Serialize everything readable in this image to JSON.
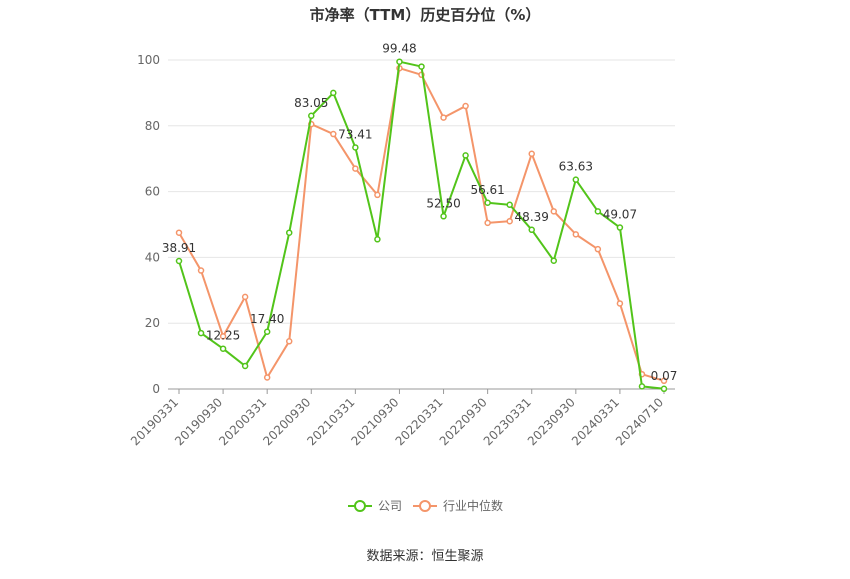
{
  "chart_data": {
    "type": "line",
    "title": "市净率（TTM）历史百分位（%）",
    "source": "数据来源：恒生聚源",
    "ylim": [
      0,
      100
    ],
    "yticks": [
      0,
      20,
      40,
      60,
      80,
      100
    ],
    "x": [
      "20190331",
      "20190630",
      "20190930",
      "20191231",
      "20200331",
      "20200630",
      "20200930",
      "20201231",
      "20210331",
      "20210630",
      "20210930",
      "20211231",
      "20220331",
      "20220630",
      "20220930",
      "20221231",
      "20230331",
      "20230630",
      "20230930",
      "20231231",
      "20240331",
      "20240630",
      "20240710"
    ],
    "xtick_labels": [
      "20190331",
      "20190930",
      "20200331",
      "20200930",
      "20210331",
      "20210930",
      "20220331",
      "20220930",
      "20230331",
      "20230930",
      "20240331",
      "20240710"
    ],
    "series": [
      {
        "name": "公司",
        "color": "#52c41a",
        "values": [
          38.91,
          17.0,
          12.25,
          7.0,
          17.4,
          47.5,
          83.05,
          90.0,
          73.41,
          45.5,
          99.48,
          98.0,
          52.5,
          71.0,
          56.61,
          56.0,
          48.39,
          39.0,
          63.63,
          54.0,
          49.07,
          0.8,
          0.07
        ],
        "labels": {
          "0": "38.91",
          "2": "12.25",
          "4": "17.40",
          "6": "83.05",
          "8": "73.41",
          "10": "99.48",
          "12": "52.50",
          "14": "56.61",
          "16": "48.39",
          "18": "63.63",
          "20": "49.07",
          "22": "0.07"
        }
      },
      {
        "name": "行业中位数",
        "color": "#f4956a",
        "values": [
          47.5,
          36.0,
          16.0,
          28.0,
          3.5,
          14.5,
          80.5,
          77.5,
          67.0,
          59.0,
          97.5,
          95.5,
          82.5,
          86.0,
          50.5,
          51.0,
          71.5,
          54.0,
          47.0,
          42.5,
          26.0,
          4.5,
          2.5
        ]
      }
    ],
    "legend_position": "bottom"
  }
}
